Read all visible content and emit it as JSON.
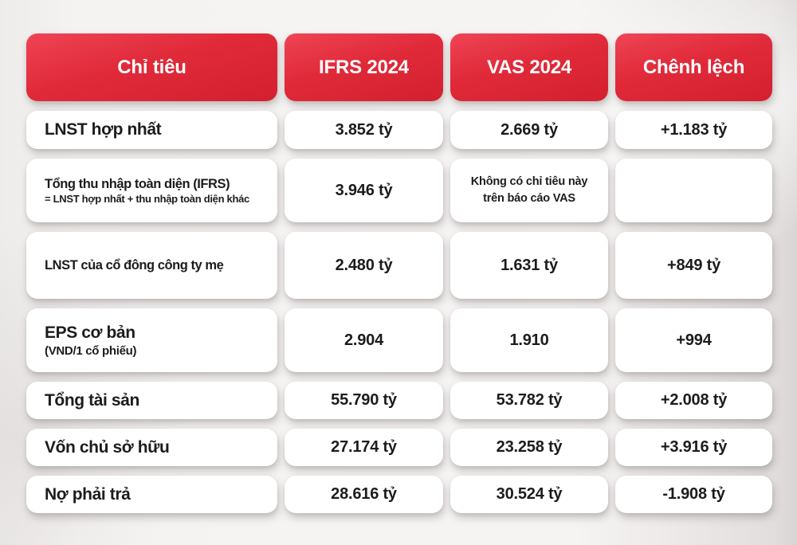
{
  "header": {
    "columns": [
      {
        "label": "Chỉ tiêu"
      },
      {
        "label": "IFRS 2024"
      },
      {
        "label": "VAS 2024"
      },
      {
        "label": "Chênh lệch"
      }
    ]
  },
  "rows": [
    {
      "label": "LNST hợp nhất",
      "sub": "",
      "ifrs": "3.852 tỷ",
      "vas": "2.669 tỷ",
      "diff": "+1.183 tỷ"
    },
    {
      "label": "Tổng thu nhập toàn diện (IFRS)",
      "sub": "= LNST hợp nhất + thu nhập toàn diện khác",
      "ifrs": "3.946 tỷ",
      "vas": "Không có chỉ tiêu này\ntrên báo cáo VAS",
      "vas_is_note": true,
      "diff": ""
    },
    {
      "label": "LNST của cổ đông\ncông ty mẹ",
      "sub": "",
      "ifrs": "2.480 tỷ",
      "vas": "1.631 tỷ",
      "diff": "+849 tỷ"
    },
    {
      "label": "EPS cơ bản",
      "sub": "(VND/1 cổ phiếu)",
      "sub_large": true,
      "ifrs": "2.904",
      "vas": "1.910",
      "diff": "+994"
    },
    {
      "label": "Tổng tài sản",
      "sub": "",
      "ifrs": "55.790 tỷ",
      "vas": "53.782 tỷ",
      "diff": "+2.008 tỷ"
    },
    {
      "label": "Vốn chủ sở hữu",
      "sub": "",
      "ifrs": "27.174 tỷ",
      "vas": "23.258 tỷ",
      "diff": "+3.916 tỷ"
    },
    {
      "label": "Nợ phải trả",
      "sub": "",
      "ifrs": "28.616 tỷ",
      "vas": "30.524 tỷ",
      "diff": "-1.908 tỷ"
    }
  ],
  "colors": {
    "header_red_top": "#ef4454",
    "header_red_bottom": "#d4202e",
    "card_bg": "#ffffff",
    "text": "#1c1c1e",
    "page_bg": "#f3f1f0"
  }
}
